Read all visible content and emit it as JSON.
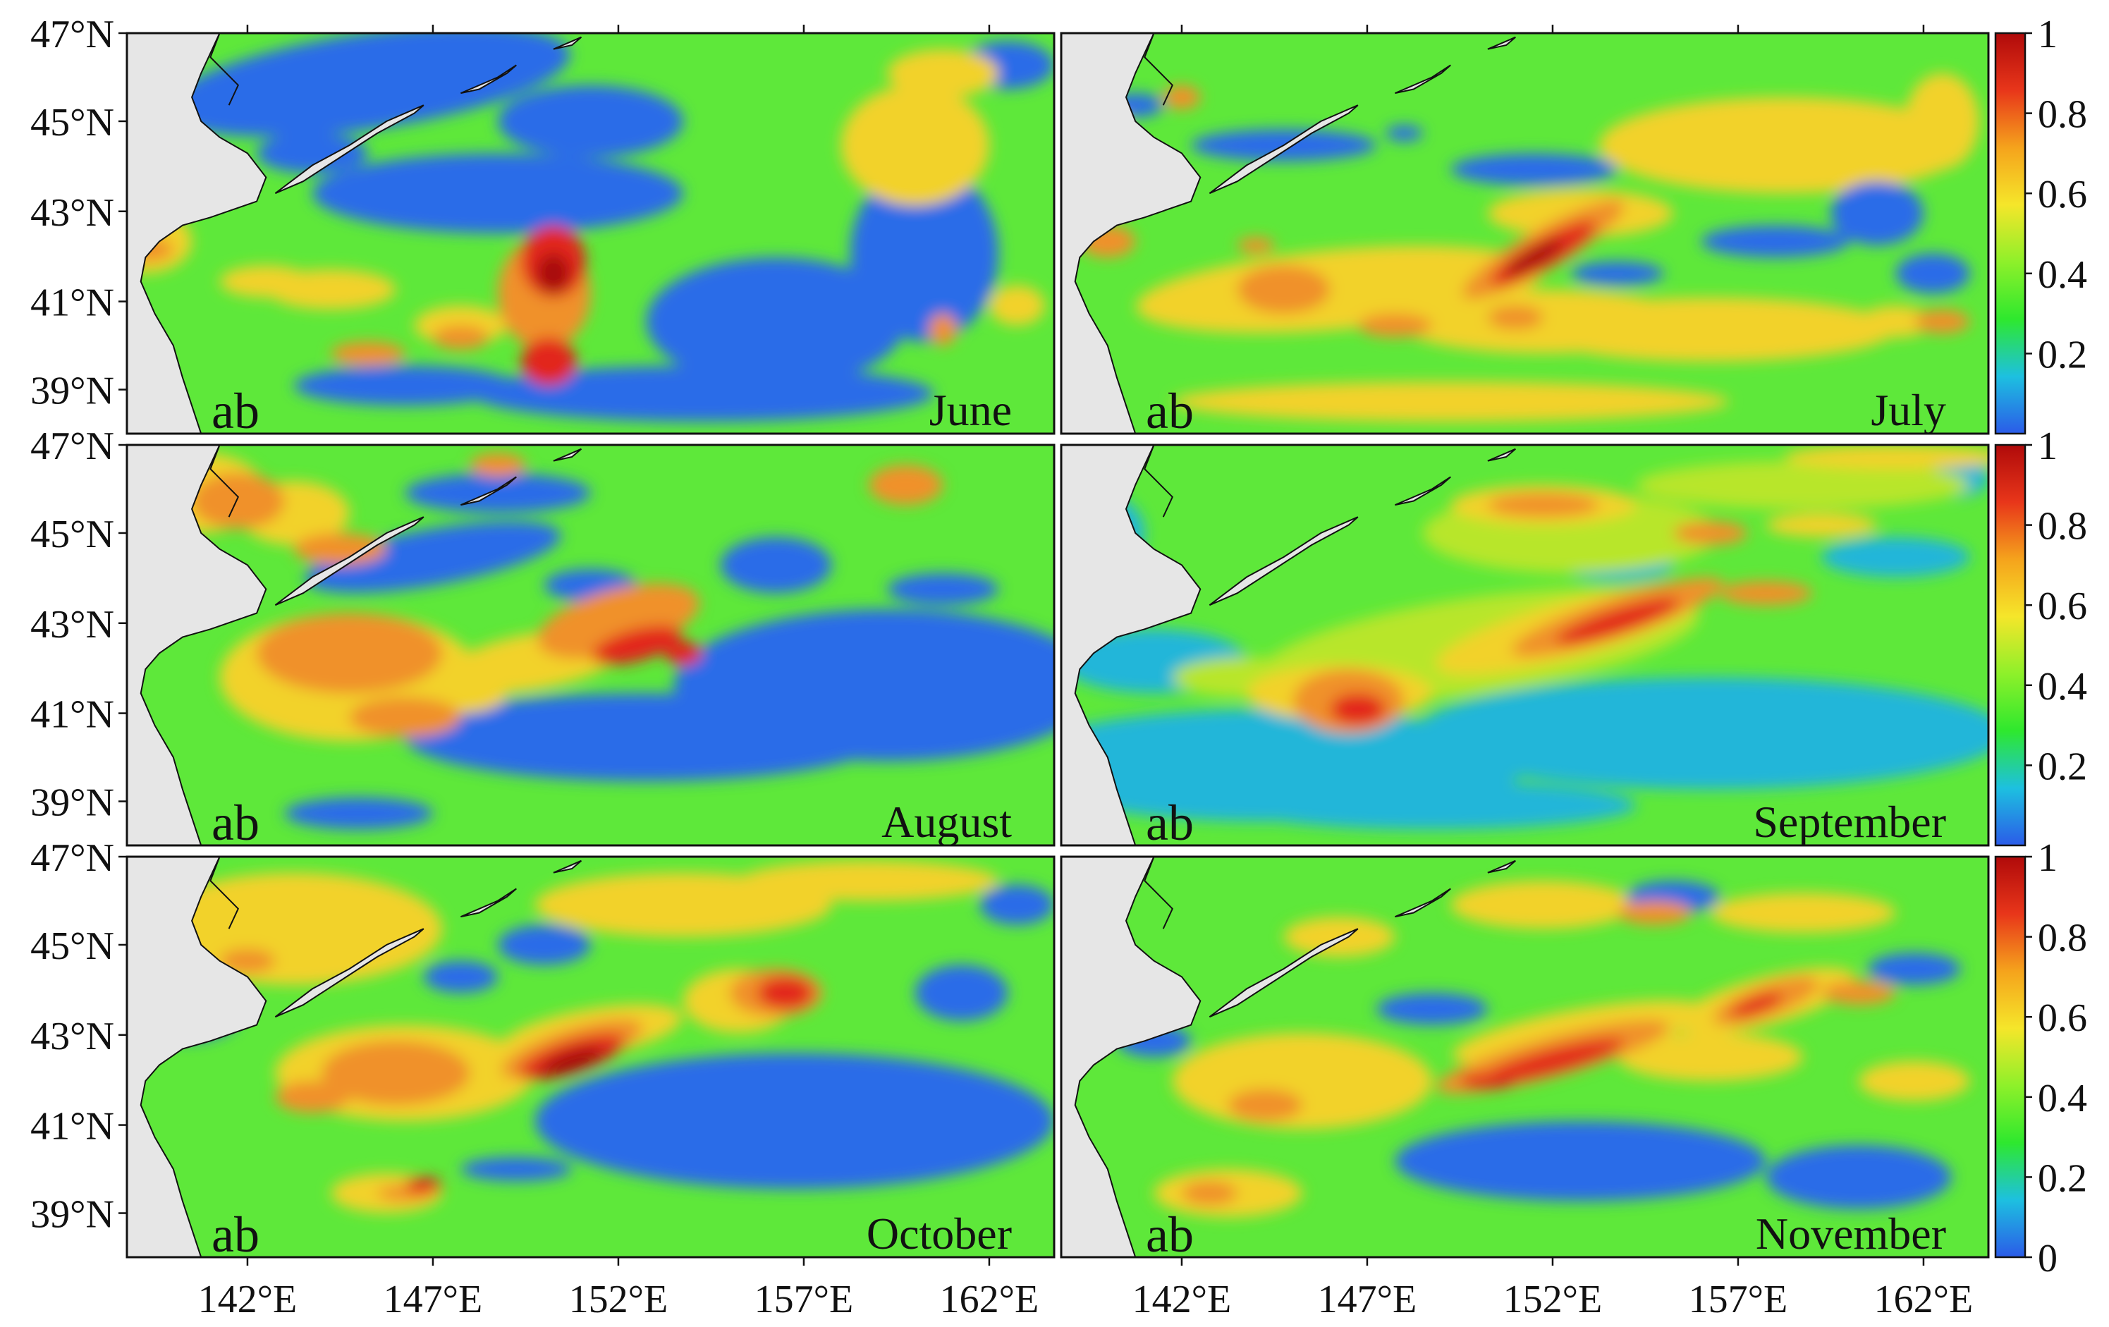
{
  "figure": {
    "panels": [
      {
        "month": "June",
        "tag": "ab"
      },
      {
        "month": "July",
        "tag": "ab"
      },
      {
        "month": "August",
        "tag": "ab"
      },
      {
        "month": "September",
        "tag": "ab"
      },
      {
        "month": "October",
        "tag": "ab"
      },
      {
        "month": "November",
        "tag": "ab"
      }
    ],
    "lat_ticks": [
      "47°N",
      "45°N",
      "43°N",
      "41°N",
      "39°N"
    ],
    "lon_ticks": [
      "142°E",
      "147°E",
      "152°E",
      "157°E",
      "162°E"
    ],
    "colorbar": {
      "ticks": [
        "1",
        "0.8",
        "0.6",
        "0.4",
        "0.2"
      ],
      "bottom_tick": "0",
      "stops": [
        "#2b5be8",
        "#1dc0e0",
        "#2ee82e",
        "#8ef02a",
        "#f5e62a",
        "#f5a31c",
        "#e8361a",
        "#b00a0a"
      ]
    },
    "field_colors": {
      "blue": "#2b6ce8",
      "cyan": "#21b6d9",
      "green": "#5ee83a",
      "yellowgreen": "#b8e62a",
      "yellow": "#f2d22b",
      "orange": "#f0912a",
      "red": "#e2281a",
      "darkred": "#a80d0d",
      "land": "#e6e6e6"
    }
  },
  "chart_data": {
    "type": "heatmap",
    "panels": [
      "June",
      "July",
      "August",
      "September",
      "October",
      "November"
    ],
    "x_ticks": [
      "142°E",
      "147°E",
      "152°E",
      "157°E",
      "162°E"
    ],
    "y_ticks": [
      "47°N",
      "45°N",
      "43°N",
      "41°N",
      "39°N"
    ],
    "xlim": [
      139.5,
      165
    ],
    "ylim": [
      38,
      47
    ],
    "colorbar_range": [
      0,
      1
    ],
    "colorbar_ticks": [
      0,
      0.2,
      0.4,
      0.6,
      0.8,
      1
    ]
  }
}
